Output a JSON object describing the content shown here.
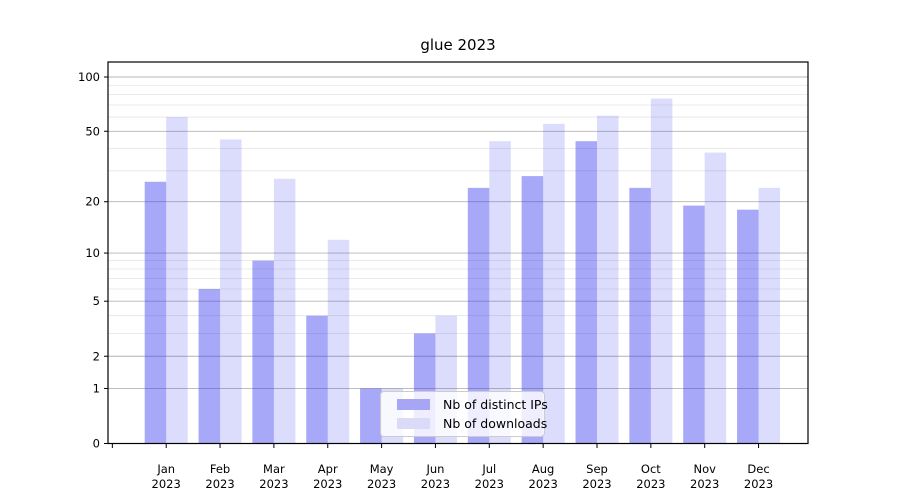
{
  "chart_data": {
    "type": "bar",
    "title": "glue 2023",
    "categories": [
      "Jan",
      "Feb",
      "Mar",
      "Apr",
      "May",
      "Jun",
      "Jul",
      "Aug",
      "Sep",
      "Oct",
      "Nov",
      "Dec"
    ],
    "category_year": "2023",
    "series": [
      {
        "name": "Nb of distinct IPs",
        "color": "#3d3df0",
        "opacity": 0.45,
        "rendered_color": "#a6a6f4",
        "values": [
          26,
          6,
          9,
          4,
          1,
          3,
          24,
          28,
          44,
          24,
          19,
          18
        ]
      },
      {
        "name": "Nb of downloads",
        "color": "#3d3df0",
        "opacity": 0.18,
        "rendered_color": "#dbdbf9",
        "values": [
          60,
          45,
          27,
          12,
          1,
          4,
          44,
          55,
          61,
          76,
          38,
          24
        ]
      }
    ],
    "yscale": "log1p",
    "ylim": [
      0,
      121
    ],
    "y_labeled_ticks": [
      0,
      1,
      2,
      5,
      10,
      20,
      50,
      100
    ],
    "y_minor_ticks": [
      3,
      4,
      6,
      7,
      8,
      9,
      30,
      40,
      60,
      70,
      80,
      90
    ],
    "grid": true,
    "grid_major_color": "#b4b4b4",
    "grid_minor_color": "#e4e4e4",
    "spine_color": "#000000",
    "legend_position": "lower center"
  }
}
